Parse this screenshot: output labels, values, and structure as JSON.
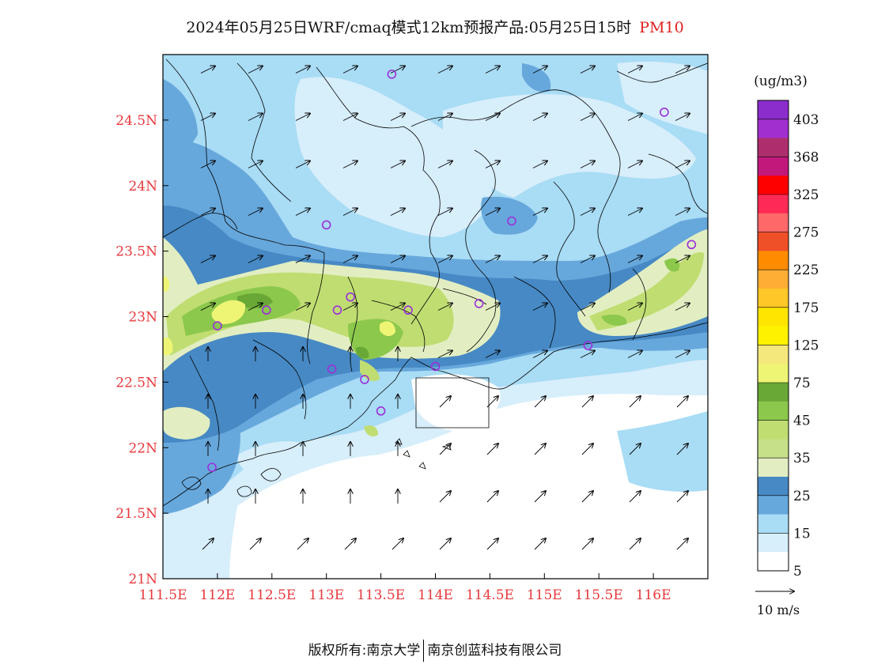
{
  "title": {
    "main": "2024年05月25日WRF/cmaq模式12km预报产品:05月25日15时",
    "variable": "PM10"
  },
  "map": {
    "lon_min": 111.5,
    "lon_max": 116.5,
    "lat_min": 21.0,
    "lat_max": 25.0,
    "lat_ticks": [
      {
        "value": 21.0,
        "label": "21N"
      },
      {
        "value": 21.5,
        "label": "21.5N"
      },
      {
        "value": 22.0,
        "label": "22N"
      },
      {
        "value": 22.5,
        "label": "22.5N"
      },
      {
        "value": 23.0,
        "label": "23N"
      },
      {
        "value": 23.5,
        "label": "23.5N"
      },
      {
        "value": 24.0,
        "label": "24N"
      },
      {
        "value": 24.5,
        "label": "24.5N"
      }
    ],
    "lon_ticks": [
      {
        "value": 111.5,
        "label": "111.5E"
      },
      {
        "value": 112.0,
        "label": "112E"
      },
      {
        "value": 112.5,
        "label": "112.5E"
      },
      {
        "value": 113.0,
        "label": "113E"
      },
      {
        "value": 113.5,
        "label": "113.5E"
      },
      {
        "value": 114.0,
        "label": "114E"
      },
      {
        "value": 114.5,
        "label": "114.5E"
      },
      {
        "value": 115.0,
        "label": "115E"
      },
      {
        "value": 115.5,
        "label": "115.5E"
      },
      {
        "value": 116.0,
        "label": "116E"
      }
    ],
    "tick_label_color": "#e8383d",
    "stations": [
      {
        "lon": 113.6,
        "lat": 24.85
      },
      {
        "lon": 116.1,
        "lat": 24.56
      },
      {
        "lon": 113.0,
        "lat": 23.7
      },
      {
        "lon": 114.7,
        "lat": 23.73
      },
      {
        "lon": 116.35,
        "lat": 23.55
      },
      {
        "lon": 112.45,
        "lat": 23.05
      },
      {
        "lon": 113.1,
        "lat": 23.05
      },
      {
        "lon": 113.22,
        "lat": 23.15
      },
      {
        "lon": 113.75,
        "lat": 23.05
      },
      {
        "lon": 114.4,
        "lat": 23.1
      },
      {
        "lon": 112.0,
        "lat": 22.93
      },
      {
        "lon": 113.05,
        "lat": 22.6
      },
      {
        "lon": 113.35,
        "lat": 22.52
      },
      {
        "lon": 114.0,
        "lat": 22.62
      },
      {
        "lon": 113.5,
        "lat": 22.28
      },
      {
        "lon": 115.4,
        "lat": 22.78
      },
      {
        "lon": 111.95,
        "lat": 21.85
      }
    ],
    "station_color": "#9b30d9"
  },
  "legend": {
    "unit": "(ug/m3)",
    "labels": [
      "403",
      "368",
      "325",
      "275",
      "225",
      "175",
      "125",
      "75",
      "45",
      "35",
      "25",
      "15",
      "5"
    ],
    "colors": [
      "#8b2ccc",
      "#a12fcf",
      "#ad2e6c",
      "#c2187c",
      "#ff0000",
      "#ff2a55",
      "#ff6868",
      "#f05028",
      "#ff8c00",
      "#ffae35",
      "#ffc727",
      "#ffe500",
      "#fff200",
      "#f4e87c",
      "#eef575",
      "#69a836",
      "#8cc84c",
      "#c0dd72",
      "#c6e08a",
      "#e2eec2",
      "#4789c4",
      "#67a8dc",
      "#a9dcf5",
      "#d7eefb",
      "#ffffff"
    ],
    "wind_scale_label": "10 m/s"
  },
  "footer": {
    "left": "版权所有:南京大学",
    "right": "南京创蓝科技有限公司"
  }
}
